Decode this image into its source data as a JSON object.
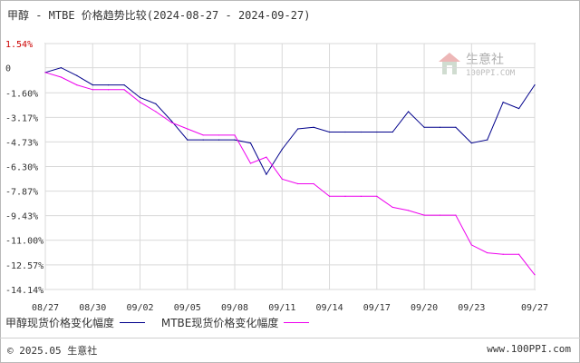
{
  "title": "甲醇 - MTBE 价格趋势比较(2024-08-27 - 2024-09-27)",
  "colors": {
    "series1": "#00008b",
    "series2": "#ee00ee",
    "grid": "#d9d9d9",
    "axis": "#888888",
    "top_tick": "#cc0000"
  },
  "watermark": {
    "brand": "生意社",
    "url": "100PPI.COM"
  },
  "footer": {
    "copyright": "© 2025.05 生意社",
    "site": "www.100PPI.com"
  },
  "chart_data": {
    "type": "line",
    "title": "甲醇 - MTBE 价格趋势比较(2024-08-27 - 2024-09-27)",
    "ylim": [
      -14.14,
      1.54
    ],
    "y_ticks": [
      "1.54%",
      "0",
      "-1.60%",
      "-3.17%",
      "-4.73%",
      "-6.30%",
      "-7.87%",
      "-9.43%",
      "-11.00%",
      "-12.57%",
      "-14.14%"
    ],
    "y_tick_values": [
      1.54,
      0,
      -1.6,
      -3.17,
      -4.73,
      -6.3,
      -7.87,
      -9.43,
      -11.0,
      -12.57,
      -14.14
    ],
    "x_ticks": [
      "08/27",
      "08/30",
      "09/02",
      "09/05",
      "09/08",
      "09/11",
      "09/14",
      "09/17",
      "09/20",
      "09/23",
      "09/27"
    ],
    "x_tick_positions": [
      0,
      3,
      6,
      9,
      12,
      15,
      18,
      21,
      24,
      27,
      31
    ],
    "grid": true,
    "legend_placement": "bottom-left",
    "series": [
      {
        "name": "甲醇现货价格变化幅度",
        "x": [
          0,
          1,
          2,
          3,
          4,
          5,
          6,
          7,
          8,
          9,
          10,
          11,
          12,
          13,
          14,
          15,
          16,
          17,
          18,
          19,
          20,
          21,
          22,
          23,
          24,
          25,
          26,
          27,
          28,
          29,
          30,
          31
        ],
        "values": [
          -0.3,
          0.0,
          -0.5,
          -1.1,
          -1.1,
          -1.1,
          -1.9,
          -2.3,
          -3.4,
          -4.6,
          -4.6,
          -4.6,
          -4.6,
          -4.8,
          -6.8,
          -5.2,
          -3.9,
          -3.8,
          -4.1,
          -4.1,
          -4.1,
          -4.1,
          -4.1,
          -2.8,
          -3.8,
          -3.8,
          -3.8,
          -4.8,
          -4.6,
          -2.2,
          -2.6,
          -1.1
        ]
      },
      {
        "name": "MTBE现货价格变化幅度",
        "x": [
          0,
          1,
          2,
          3,
          4,
          5,
          6,
          7,
          8,
          9,
          10,
          11,
          12,
          13,
          14,
          15,
          16,
          17,
          18,
          19,
          20,
          21,
          22,
          23,
          24,
          25,
          26,
          27,
          28,
          29,
          30,
          31
        ],
        "values": [
          -0.3,
          -0.6,
          -1.1,
          -1.4,
          -1.4,
          -1.4,
          -2.2,
          -2.8,
          -3.5,
          -3.9,
          -4.3,
          -4.3,
          -4.3,
          -6.1,
          -5.7,
          -7.1,
          -7.4,
          -7.4,
          -8.2,
          -8.2,
          -8.2,
          -8.2,
          -8.9,
          -9.1,
          -9.4,
          -9.4,
          -9.4,
          -11.3,
          -11.8,
          -11.9,
          -11.9,
          -13.2
        ]
      }
    ]
  }
}
